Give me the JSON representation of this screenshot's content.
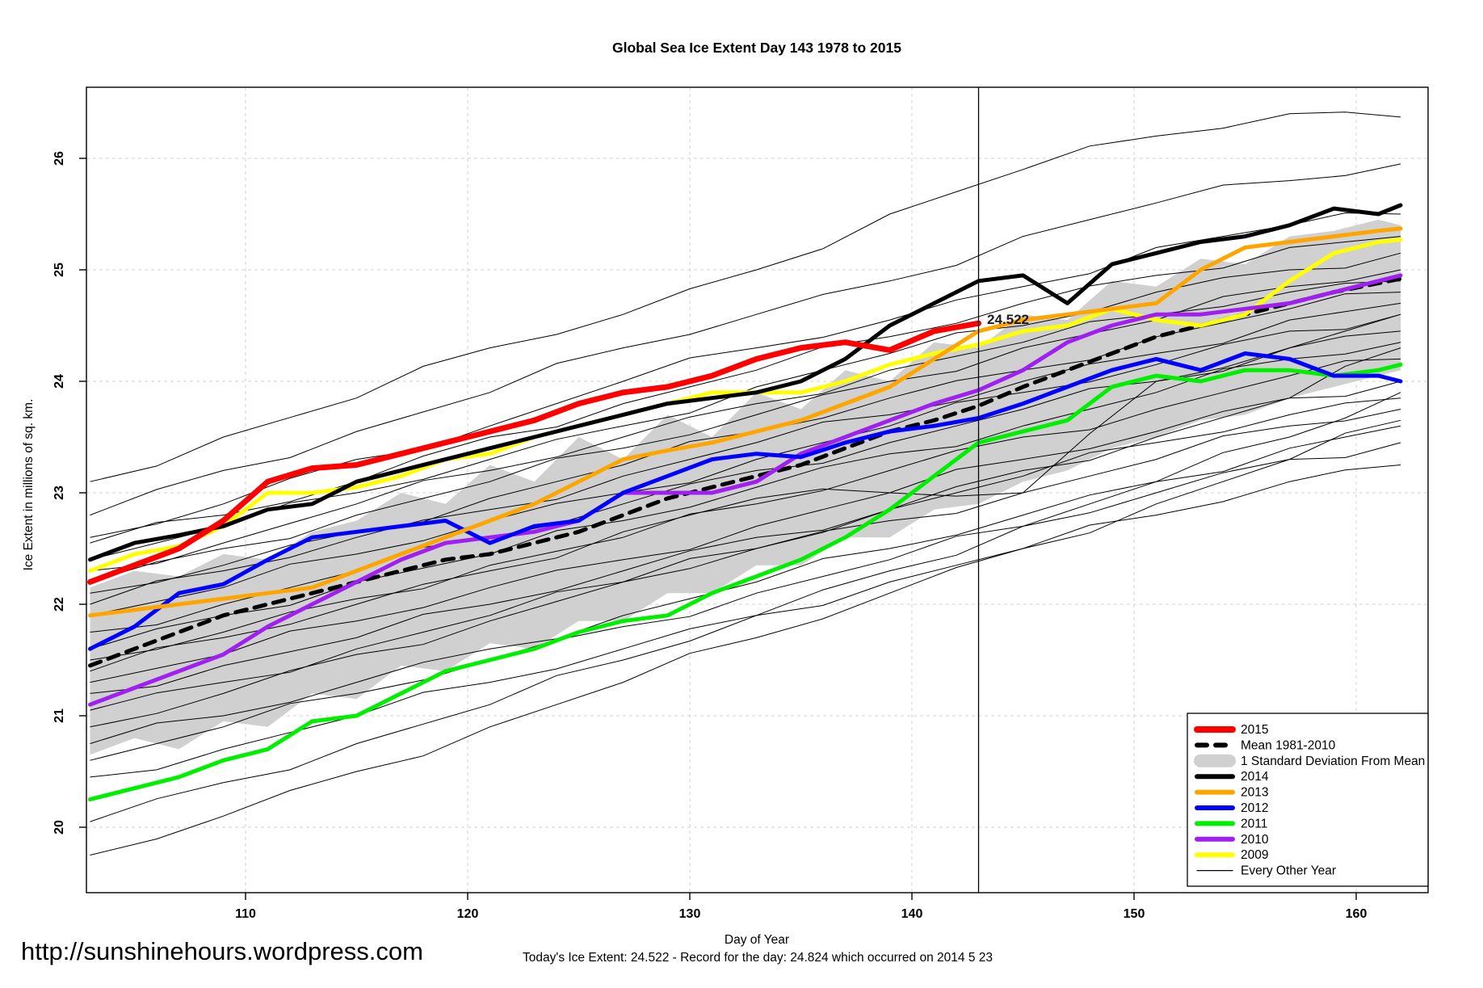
{
  "title": "Global Sea Ice Extent Day 143 1978 to 2015",
  "watermark_url": "http://sunshinehours.wordpress.com",
  "caption": "Today's Ice Extent: 24.522  - Record for the day: 24.824 which occurred on 2014 5 23",
  "annotation": {
    "text": "24.522",
    "color": "#FF0000",
    "day": 143,
    "value": 24.52
  },
  "chart_data": {
    "type": "line",
    "xlabel": "Day of Year",
    "ylabel": "Ice Extent in millions of sq. km.",
    "xticks": [
      110,
      120,
      130,
      140,
      150,
      160
    ],
    "yticks": [
      20,
      21,
      22,
      23,
      24,
      25,
      26
    ],
    "xlim": [
      102.5,
      163.5
    ],
    "ylim": [
      19.4,
      26.65
    ],
    "grid": true,
    "vline_x": 143,
    "x": [
      103,
      105,
      107,
      109,
      111,
      113,
      115,
      117,
      119,
      121,
      123,
      125,
      127,
      129,
      131,
      133,
      135,
      137,
      139,
      141,
      143,
      145,
      147,
      149,
      151,
      153,
      155,
      157,
      159,
      161,
      162
    ],
    "series": [
      {
        "name": "Mean 1981-2010",
        "color": "#000000",
        "width": 5,
        "dash": "14 10",
        "values": [
          21.45,
          21.6,
          21.75,
          21.9,
          22.0,
          22.1,
          22.2,
          22.3,
          22.4,
          22.45,
          22.55,
          22.65,
          22.8,
          22.95,
          23.05,
          23.15,
          23.25,
          23.4,
          23.55,
          23.65,
          23.78,
          23.95,
          24.1,
          24.25,
          24.4,
          24.5,
          24.6,
          24.7,
          24.8,
          24.88,
          24.92
        ]
      },
      {
        "name": "2009",
        "color": "#FFFF00",
        "width": 5,
        "dash": "",
        "values": [
          22.3,
          22.45,
          22.52,
          22.7,
          23.0,
          23.0,
          23.05,
          23.15,
          23.3,
          23.35,
          23.5,
          23.6,
          23.7,
          23.8,
          23.9,
          23.9,
          23.9,
          24.0,
          24.15,
          24.25,
          24.33,
          24.45,
          24.5,
          24.65,
          24.55,
          24.5,
          24.6,
          24.9,
          25.15,
          25.25,
          25.27
        ]
      },
      {
        "name": "2010",
        "color": "#A020F0",
        "width": 5,
        "dash": "",
        "values": [
          21.1,
          21.25,
          21.4,
          21.55,
          21.8,
          22.0,
          22.2,
          22.4,
          22.55,
          22.6,
          22.65,
          22.75,
          23.0,
          23.0,
          23.0,
          23.1,
          23.35,
          23.5,
          23.65,
          23.8,
          23.92,
          24.1,
          24.35,
          24.5,
          24.6,
          24.6,
          24.65,
          24.7,
          24.8,
          24.9,
          24.95
        ]
      },
      {
        "name": "2011",
        "color": "#00EE00",
        "width": 5,
        "dash": "",
        "values": [
          20.25,
          20.35,
          20.45,
          20.6,
          20.7,
          20.95,
          21.0,
          21.2,
          21.4,
          21.5,
          21.6,
          21.75,
          21.85,
          21.9,
          22.1,
          22.25,
          22.4,
          22.6,
          22.85,
          23.15,
          23.45,
          23.55,
          23.65,
          23.95,
          24.05,
          24.0,
          24.1,
          24.1,
          24.05,
          24.1,
          24.15
        ]
      },
      {
        "name": "2012",
        "color": "#0000FF",
        "width": 5,
        "dash": "",
        "values": [
          21.6,
          21.8,
          22.1,
          22.18,
          22.4,
          22.6,
          22.65,
          22.7,
          22.75,
          22.55,
          22.7,
          22.75,
          23.0,
          23.15,
          23.3,
          23.35,
          23.32,
          23.45,
          23.55,
          23.6,
          23.67,
          23.8,
          23.95,
          24.1,
          24.2,
          24.1,
          24.25,
          24.2,
          24.05,
          24.05,
          24.0
        ]
      },
      {
        "name": "2013",
        "color": "#FFA500",
        "width": 5,
        "dash": "",
        "values": [
          21.9,
          21.95,
          22.0,
          22.05,
          22.1,
          22.15,
          22.3,
          22.45,
          22.6,
          22.75,
          22.9,
          23.1,
          23.3,
          23.38,
          23.45,
          23.55,
          23.65,
          23.8,
          23.95,
          24.2,
          24.45,
          24.55,
          24.6,
          24.65,
          24.7,
          25.0,
          25.2,
          25.25,
          25.3,
          25.35,
          25.37
        ]
      },
      {
        "name": "2014",
        "color": "#000000",
        "width": 5,
        "dash": "",
        "values": [
          22.4,
          22.55,
          22.62,
          22.7,
          22.85,
          22.9,
          23.1,
          23.2,
          23.3,
          23.4,
          23.5,
          23.6,
          23.7,
          23.8,
          23.85,
          23.9,
          24.0,
          24.2,
          24.5,
          24.7,
          24.9,
          24.95,
          24.7,
          25.05,
          25.15,
          25.25,
          25.3,
          25.4,
          25.55,
          25.5,
          25.58
        ]
      },
      {
        "name": "2015",
        "color": "#FF0000",
        "width": 7,
        "dash": "",
        "values": [
          22.2,
          22.35,
          22.5,
          22.75,
          23.1,
          23.22,
          23.25,
          23.35,
          23.45,
          23.55,
          23.65,
          23.8,
          23.9,
          23.95,
          24.05,
          24.2,
          24.3,
          24.35,
          24.28,
          24.45,
          24.52
        ]
      }
    ],
    "band": {
      "name": "1 Standard Deviation From Mean",
      "color": "#D0D0D0",
      "upper": [
        22.15,
        22.3,
        22.25,
        22.45,
        22.4,
        22.65,
        22.75,
        23.0,
        22.9,
        23.25,
        23.1,
        23.5,
        23.3,
        23.7,
        23.5,
        23.9,
        23.75,
        24.1,
        24.0,
        24.35,
        24.3,
        24.6,
        24.55,
        24.9,
        24.85,
        25.1,
        25.05,
        25.3,
        25.35,
        25.45,
        25.4
      ],
      "lower": [
        20.65,
        20.8,
        20.7,
        20.95,
        20.9,
        21.2,
        21.15,
        21.45,
        21.4,
        21.65,
        21.6,
        21.85,
        21.85,
        22.1,
        22.1,
        22.35,
        22.35,
        22.6,
        22.6,
        22.85,
        22.9,
        23.1,
        23.2,
        23.4,
        23.5,
        23.65,
        23.7,
        23.85,
        23.95,
        24.05,
        24.1
      ]
    },
    "other_years": {
      "name": "Every Other Year",
      "color": "#000000",
      "width": 1,
      "x": [
        103,
        109,
        115,
        121,
        127,
        133,
        139,
        145,
        151,
        157,
        162
      ],
      "lines": [
        [
          23.1,
          23.5,
          23.85,
          24.3,
          24.6,
          25.0,
          25.5,
          25.9,
          26.2,
          26.4,
          26.37
        ],
        [
          22.8,
          23.2,
          23.55,
          23.9,
          24.3,
          24.6,
          24.9,
          25.3,
          25.6,
          25.8,
          25.95
        ],
        [
          22.6,
          22.9,
          23.3,
          23.6,
          24.0,
          24.3,
          24.55,
          24.85,
          25.2,
          25.4,
          25.5
        ],
        [
          22.55,
          22.8,
          23.1,
          23.5,
          23.8,
          24.1,
          24.4,
          24.7,
          24.95,
          25.2,
          25.3
        ],
        [
          22.4,
          22.7,
          23.0,
          23.3,
          23.6,
          23.95,
          24.25,
          24.5,
          24.8,
          25.0,
          25.15
        ],
        [
          22.3,
          22.55,
          22.9,
          23.2,
          23.5,
          23.8,
          24.1,
          24.35,
          24.6,
          24.8,
          24.9
        ],
        [
          22.2,
          22.5,
          22.8,
          23.1,
          23.4,
          23.7,
          24.0,
          24.3,
          24.55,
          24.85,
          25.0
        ],
        [
          22.1,
          22.35,
          22.65,
          22.95,
          23.25,
          23.55,
          23.85,
          24.1,
          24.4,
          24.65,
          24.8
        ],
        [
          22.0,
          22.3,
          22.6,
          22.85,
          23.15,
          23.45,
          23.7,
          24.0,
          24.25,
          24.55,
          24.7
        ],
        [
          21.9,
          22.15,
          22.45,
          22.75,
          23.0,
          23.3,
          23.6,
          23.9,
          24.15,
          24.45,
          24.6
        ],
        [
          21.75,
          22.0,
          22.3,
          22.6,
          22.9,
          23.2,
          23.45,
          23.75,
          24.0,
          24.3,
          24.45
        ],
        [
          21.6,
          21.9,
          22.2,
          22.45,
          22.75,
          23.05,
          23.35,
          23.6,
          23.9,
          24.2,
          24.35
        ],
        [
          21.5,
          21.75,
          22.05,
          22.35,
          22.6,
          22.9,
          23.2,
          23.5,
          23.75,
          24.05,
          24.2
        ],
        [
          21.4,
          21.7,
          22.0,
          22.3,
          22.65,
          22.95,
          23.0,
          23.0,
          24.0,
          24.3,
          24.6
        ],
        [
          21.3,
          21.55,
          21.85,
          22.15,
          22.4,
          22.7,
          23.0,
          23.3,
          23.55,
          23.85,
          24.0
        ],
        [
          21.2,
          21.45,
          21.7,
          22.0,
          22.3,
          22.6,
          22.85,
          23.15,
          23.45,
          23.7,
          23.85
        ],
        [
          21.05,
          21.3,
          21.6,
          21.9,
          22.2,
          22.5,
          22.75,
          23.0,
          23.3,
          23.6,
          23.75
        ],
        [
          20.9,
          21.2,
          21.55,
          21.85,
          22.2,
          22.5,
          22.85,
          23.2,
          23.5,
          23.85,
          24.3
        ],
        [
          20.75,
          21.0,
          21.3,
          21.6,
          21.9,
          22.2,
          22.5,
          22.8,
          23.1,
          23.4,
          23.6
        ],
        [
          20.6,
          20.9,
          21.2,
          21.5,
          21.8,
          22.1,
          22.4,
          22.7,
          23.0,
          23.3,
          23.45
        ],
        [
          20.45,
          20.7,
          21.0,
          21.3,
          21.6,
          21.9,
          22.2,
          22.5,
          22.8,
          23.1,
          23.25
        ],
        [
          20.05,
          20.4,
          20.75,
          21.1,
          21.5,
          21.9,
          22.3,
          22.7,
          23.1,
          23.5,
          23.9
        ],
        [
          19.75,
          20.1,
          20.5,
          20.9,
          21.3,
          21.7,
          22.1,
          22.5,
          22.9,
          23.3,
          23.65
        ]
      ]
    },
    "legend": {
      "position": "bottom-right",
      "items": [
        {
          "label": "2015",
          "color": "#FF0000",
          "type": "line",
          "width": 8
        },
        {
          "label": "Mean 1981-2010",
          "color": "#000000",
          "type": "dash",
          "width": 6
        },
        {
          "label": "1 Standard Deviation From Mean",
          "color": "#D0D0D0",
          "type": "band",
          "width": 16
        },
        {
          "label": "2014",
          "color": "#000000",
          "type": "line",
          "width": 6
        },
        {
          "label": "2013",
          "color": "#FFA500",
          "type": "line",
          "width": 6
        },
        {
          "label": "2012",
          "color": "#0000FF",
          "type": "line",
          "width": 6
        },
        {
          "label": "2011",
          "color": "#00EE00",
          "type": "line",
          "width": 6
        },
        {
          "label": "2010",
          "color": "#A020F0",
          "type": "line",
          "width": 6
        },
        {
          "label": "2009",
          "color": "#FFFF00",
          "type": "line",
          "width": 6
        },
        {
          "label": "Every Other Year",
          "color": "#000000",
          "type": "thin",
          "width": 1.2
        }
      ]
    },
    "grid_color": "#D9D9D9"
  }
}
